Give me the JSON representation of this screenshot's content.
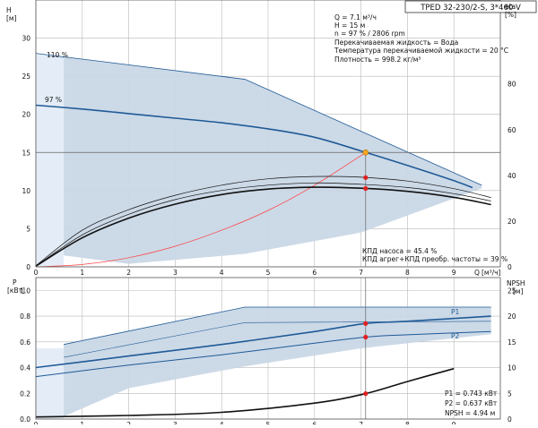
{
  "colors": {
    "band": "#c9d7e6",
    "band_light": "#e4edf7",
    "curve_blue": "#1f5a96",
    "curve_black": "#111111",
    "grid": "#b8b8b8",
    "system_curve": "#ff4040",
    "marker_red": "#e02020",
    "marker_op": "#f5a623"
  },
  "info": {
    "title": "TPED 32-230/2-S, 3*460 V",
    "lines": [
      "Q = 7.1 м³/ч",
      "H = 15 м",
      "n = 97 % / 2806 rpm",
      "Перекачиваемая жидкость = Вода",
      "Температура перекачиваемой жидкости = 20 °C",
      "Плотность = 998.2 кг/м³"
    ],
    "eff_lines": [
      "КПД насоса = 45.4 %",
      "КПД агрег+КПД преобр. частоты = 39 %"
    ],
    "power_lines": [
      "P1 = 0.743 кВт",
      "P2 = 0.637 кВт",
      "NPSH = 4.94 м"
    ]
  },
  "chart_data": [
    {
      "type": "line",
      "axes": {
        "x": {
          "label": "Q",
          "unit": "[м³/ч]",
          "range": [
            0,
            10
          ],
          "ticks": [
            0,
            1,
            2,
            3,
            4,
            5,
            6,
            7,
            8,
            9
          ]
        },
        "y_left": {
          "label": "H",
          "unit": "[м]",
          "range": [
            0,
            35
          ],
          "ticks": [
            0,
            5,
            10,
            15,
            20,
            25,
            30
          ]
        },
        "y_right": {
          "label": "eta",
          "unit": "[%]",
          "range": [
            0,
            116.7
          ],
          "ticks": [
            0,
            20,
            40,
            60,
            80
          ]
        },
        "grid": true
      },
      "curve_labels": [
        "110 %",
        "97 %"
      ],
      "series": [
        {
          "speed": "110 %",
          "x": [
            0,
            4.5,
            9.6
          ],
          "y": [
            28.0,
            24.6,
            10.7
          ]
        },
        {
          "speed": "97 %",
          "x": [
            0,
            1,
            2,
            3,
            4,
            5,
            6,
            7,
            8,
            9,
            9.4
          ],
          "y": [
            21.2,
            20.7,
            20.1,
            19.5,
            18.9,
            18.1,
            17.0,
            15.2,
            13.3,
            11.3,
            10.4
          ]
        },
        {
          "role": "system",
          "x": [
            0,
            1,
            2,
            3,
            4,
            5,
            6,
            7.1
          ],
          "y": [
            0,
            0.3,
            1.2,
            2.7,
            4.8,
            7.4,
            10.7,
            15.0
          ]
        },
        {
          "role": "efficiency",
          "x": [
            0,
            1,
            2,
            3,
            4,
            5,
            6,
            7,
            8,
            9,
            9.8
          ],
          "y": [
            0.5,
            16,
            25,
            31.3,
            35.7,
            38.5,
            39.5,
            39.2,
            37.5,
            34.2,
            30.3
          ]
        },
        {
          "role": "efficiency",
          "x": [
            0,
            1,
            2,
            3,
            4,
            5,
            6,
            7,
            8,
            9,
            9.8
          ],
          "y": [
            0.4,
            14,
            23,
            29.4,
            33.4,
            35.7,
            36.7,
            36.1,
            34.7,
            32,
            28.8
          ]
        },
        {
          "role": "efficiency",
          "x": [
            0,
            1,
            2,
            3,
            4,
            5,
            6,
            7,
            8,
            9,
            9.8
          ],
          "y": [
            0.3,
            12.7,
            21.3,
            27.4,
            31.6,
            34,
            34.8,
            34.4,
            33,
            30.4,
            27.2
          ]
        }
      ],
      "operating_point": {
        "Q": 7.1,
        "H": 15,
        "eta_pump": 45.4,
        "eta_total": 39
      }
    },
    {
      "type": "line",
      "axes": {
        "x": {
          "label": "Q",
          "unit": "[м³/ч]",
          "range": [
            0,
            10
          ],
          "ticks": [
            0,
            1,
            2,
            3,
            4,
            5,
            6,
            7,
            8,
            9
          ]
        },
        "y_left": {
          "label": "P",
          "unit": "[кВт]",
          "range": [
            0,
            1.1
          ],
          "ticks": [
            0,
            0.2,
            0.4,
            0.6,
            0.8,
            1.0
          ]
        },
        "y_right": {
          "label": "NPSH",
          "unit": "[м]",
          "range": [
            0,
            27.5
          ],
          "ticks": [
            0,
            5,
            10,
            15,
            20,
            25
          ]
        },
        "grid": true
      },
      "curve_labels": [
        "P1",
        "P2"
      ],
      "series": [
        {
          "name": "P1",
          "x": [
            0,
            2,
            4,
            6,
            7.1,
            8,
            9.8
          ],
          "y": [
            0.4,
            0.49,
            0.58,
            0.68,
            0.743,
            0.76,
            0.8
          ]
        },
        {
          "name": "P2",
          "x": [
            0,
            2,
            4,
            6,
            7.1,
            8,
            9.8
          ],
          "y": [
            0.33,
            0.42,
            0.5,
            0.59,
            0.637,
            0.655,
            0.68
          ]
        },
        {
          "role": "npsh",
          "x": [
            0,
            2,
            4,
            6,
            7.1,
            8,
            9
          ],
          "y": [
            0.4,
            0.7,
            1.3,
            3.1,
            4.94,
            7.3,
            9.8
          ]
        }
      ],
      "operating_point": {
        "Q": 7.1,
        "P1": 0.743,
        "P2": 0.637,
        "NPSH": 4.94
      }
    }
  ]
}
